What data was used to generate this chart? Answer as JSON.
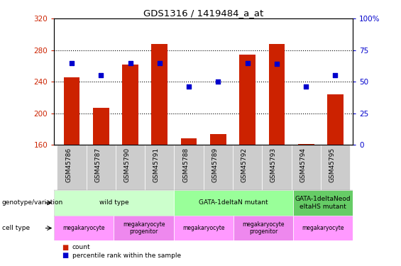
{
  "title": "GDS1316 / 1419484_a_at",
  "samples": [
    "GSM45786",
    "GSM45787",
    "GSM45790",
    "GSM45791",
    "GSM45788",
    "GSM45789",
    "GSM45792",
    "GSM45793",
    "GSM45794",
    "GSM45795"
  ],
  "count_values": [
    246,
    207,
    262,
    288,
    168,
    174,
    274,
    288,
    161,
    224
  ],
  "percentile_values": [
    65,
    55,
    65,
    65,
    46,
    50,
    65,
    64,
    46,
    55
  ],
  "ylim_left": [
    160,
    320
  ],
  "ylim_right": [
    0,
    100
  ],
  "yticks_left": [
    160,
    200,
    240,
    280,
    320
  ],
  "yticks_right": [
    0,
    25,
    50,
    75,
    100
  ],
  "bar_color": "#cc2200",
  "dot_color": "#0000cc",
  "axis_label_color_left": "#cc2200",
  "axis_label_color_right": "#0000cc",
  "genotype_groups": [
    {
      "label": "wild type",
      "start": 0,
      "end": 4,
      "color": "#ccffcc"
    },
    {
      "label": "GATA-1deltaN mutant",
      "start": 4,
      "end": 8,
      "color": "#99ff99"
    },
    {
      "label": "GATA-1deltaNeod\neltaHS mutant",
      "start": 8,
      "end": 10,
      "color": "#66cc66"
    }
  ],
  "cell_type_groups": [
    {
      "label": "megakaryocyte",
      "start": 0,
      "end": 2,
      "color": "#ff99ff"
    },
    {
      "label": "megakaryocyte\nprogenitor",
      "start": 2,
      "end": 4,
      "color": "#ee88ee"
    },
    {
      "label": "megakaryocyte",
      "start": 4,
      "end": 6,
      "color": "#ff99ff"
    },
    {
      "label": "megakaryocyte\nprogenitor",
      "start": 6,
      "end": 8,
      "color": "#ee88ee"
    },
    {
      "label": "megakaryocyte",
      "start": 8,
      "end": 10,
      "color": "#ff99ff"
    }
  ],
  "xticklabel_bg": "#cccccc",
  "legend_count_label": "count",
  "legend_percentile_label": "percentile rank within the sample"
}
